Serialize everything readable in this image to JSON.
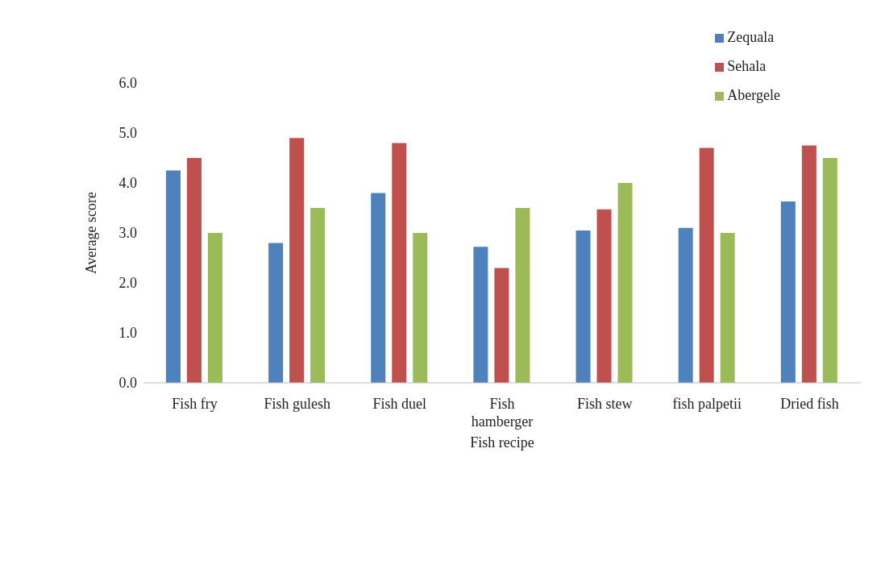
{
  "chart_data": {
    "type": "bar",
    "xlabel": "Fish recipe",
    "ylabel": "Average score",
    "categories": [
      "Fish fry",
      "Fish gulesh",
      "Fish duel",
      "Fish hamberger",
      "Fish stew",
      "fish palpetii",
      "Dried fish"
    ],
    "series": [
      {
        "name": "Zequala",
        "color": "#4f81bd",
        "values": [
          4.25,
          2.8,
          3.8,
          2.72,
          3.05,
          3.1,
          3.63
        ]
      },
      {
        "name": "Sehala",
        "color": "#c0504d",
        "values": [
          4.5,
          4.9,
          4.8,
          2.3,
          3.47,
          4.7,
          4.75
        ]
      },
      {
        "name": "Abergele",
        "color": "#9bbb59",
        "values": [
          3.0,
          3.5,
          3.0,
          3.5,
          4.0,
          3.0,
          4.5
        ]
      }
    ],
    "ylim": [
      0,
      6
    ],
    "yticks": [
      {
        "value": 0,
        "label": "0.0"
      },
      {
        "value": 1,
        "label": "1.0"
      },
      {
        "value": 2,
        "label": "2.0"
      },
      {
        "value": 3,
        "label": "3.0"
      },
      {
        "value": 4,
        "label": "4.0"
      },
      {
        "value": 5,
        "label": "5.0"
      },
      {
        "value": 6,
        "label": "6.0"
      }
    ],
    "grid": false,
    "legend": "top right"
  }
}
